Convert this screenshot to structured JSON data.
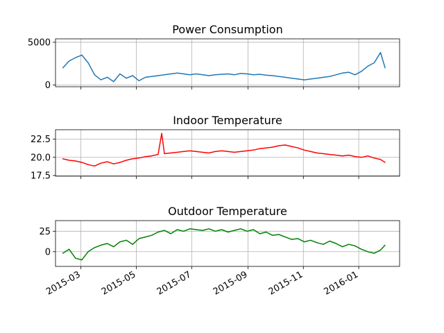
{
  "chart_data": [
    {
      "type": "line",
      "title": "Power Consumption",
      "color": "#1f77b4",
      "xlim": [
        "2015-02-01",
        "2016-02-15"
      ],
      "ylim": [
        -200,
        5400
      ],
      "yticks": [
        0,
        5000
      ],
      "ytick_labels": [
        "0",
        "5000"
      ],
      "grid": true,
      "x_dates": [
        "2015-02-09",
        "2015-02-16",
        "2015-02-23",
        "2015-03-02",
        "2015-03-09",
        "2015-03-16",
        "2015-03-23",
        "2015-03-30",
        "2015-04-06",
        "2015-04-13",
        "2015-04-20",
        "2015-04-27",
        "2015-05-04",
        "2015-05-11",
        "2015-05-18",
        "2015-05-25",
        "2015-06-01",
        "2015-06-08",
        "2015-06-15",
        "2015-06-22",
        "2015-06-29",
        "2015-07-06",
        "2015-07-13",
        "2015-07-20",
        "2015-07-27",
        "2015-08-03",
        "2015-08-10",
        "2015-08-17",
        "2015-08-24",
        "2015-08-31",
        "2015-09-07",
        "2015-09-14",
        "2015-09-21",
        "2015-09-28",
        "2015-10-05",
        "2015-10-12",
        "2015-10-19",
        "2015-10-26",
        "2015-11-02",
        "2015-11-09",
        "2015-11-16",
        "2015-11-23",
        "2015-11-30",
        "2015-12-07",
        "2015-12-14",
        "2015-12-21",
        "2015-12-28",
        "2016-01-04",
        "2016-01-11",
        "2016-01-18",
        "2016-01-25",
        "2016-01-30"
      ],
      "values": [
        2000,
        2800,
        3200,
        3500,
        2600,
        1200,
        600,
        900,
        400,
        1300,
        800,
        1100,
        500,
        900,
        1000,
        1100,
        1200,
        1300,
        1400,
        1300,
        1200,
        1300,
        1200,
        1100,
        1200,
        1250,
        1300,
        1200,
        1350,
        1300,
        1200,
        1250,
        1150,
        1100,
        1000,
        900,
        800,
        700,
        600,
        700,
        800,
        900,
        1000,
        1200,
        1400,
        1500,
        1200,
        1600,
        2200,
        2600,
        3800,
        2000
      ]
    },
    {
      "type": "line",
      "title": "Indoor Temperature",
      "color": "#ff0000",
      "xlim": [
        "2015-02-01",
        "2016-02-15"
      ],
      "ylim": [
        17.4,
        23.8
      ],
      "yticks": [
        17.5,
        20.0,
        22.5
      ],
      "ytick_labels": [
        "17.5",
        "20.0",
        "22.5"
      ],
      "grid": true,
      "x_dates": [
        "2015-02-09",
        "2015-02-16",
        "2015-02-23",
        "2015-03-02",
        "2015-03-09",
        "2015-03-16",
        "2015-03-23",
        "2015-03-30",
        "2015-04-06",
        "2015-04-13",
        "2015-04-20",
        "2015-04-27",
        "2015-05-04",
        "2015-05-11",
        "2015-05-18",
        "2015-05-25",
        "2015-05-29",
        "2015-06-01",
        "2015-06-08",
        "2015-06-15",
        "2015-06-22",
        "2015-06-29",
        "2015-07-06",
        "2015-07-13",
        "2015-07-20",
        "2015-07-27",
        "2015-08-03",
        "2015-08-10",
        "2015-08-17",
        "2015-08-24",
        "2015-08-31",
        "2015-09-07",
        "2015-09-14",
        "2015-09-21",
        "2015-09-28",
        "2015-10-05",
        "2015-10-12",
        "2015-10-19",
        "2015-10-26",
        "2015-11-02",
        "2015-11-09",
        "2015-11-16",
        "2015-11-23",
        "2015-11-30",
        "2015-12-07",
        "2015-12-14",
        "2015-12-21",
        "2015-12-28",
        "2016-01-04",
        "2016-01-11",
        "2016-01-18",
        "2016-01-25",
        "2016-01-30"
      ],
      "values": [
        19.8,
        19.6,
        19.5,
        19.3,
        19.0,
        18.8,
        19.2,
        19.4,
        19.1,
        19.3,
        19.6,
        19.8,
        19.9,
        20.1,
        20.2,
        20.4,
        23.3,
        20.5,
        20.6,
        20.7,
        20.8,
        20.9,
        20.8,
        20.7,
        20.6,
        20.8,
        20.9,
        20.8,
        20.7,
        20.8,
        20.9,
        21.0,
        21.2,
        21.3,
        21.4,
        21.6,
        21.7,
        21.5,
        21.3,
        21.0,
        20.8,
        20.6,
        20.5,
        20.4,
        20.3,
        20.2,
        20.3,
        20.1,
        20.0,
        20.2,
        19.9,
        19.7,
        19.3
      ]
    },
    {
      "type": "line",
      "title": "Outdoor Temperature",
      "color": "#008000",
      "xlim": [
        "2015-02-01",
        "2016-02-15"
      ],
      "ylim": [
        -18,
        38
      ],
      "yticks": [
        0,
        25
      ],
      "ytick_labels": [
        "0",
        "25"
      ],
      "grid": true,
      "x_dates": [
        "2015-02-09",
        "2015-02-16",
        "2015-02-23",
        "2015-03-02",
        "2015-03-09",
        "2015-03-16",
        "2015-03-23",
        "2015-03-30",
        "2015-04-06",
        "2015-04-13",
        "2015-04-20",
        "2015-04-27",
        "2015-05-04",
        "2015-05-11",
        "2015-05-18",
        "2015-05-25",
        "2015-06-01",
        "2015-06-08",
        "2015-06-15",
        "2015-06-22",
        "2015-06-29",
        "2015-07-06",
        "2015-07-13",
        "2015-07-20",
        "2015-07-27",
        "2015-08-03",
        "2015-08-10",
        "2015-08-17",
        "2015-08-24",
        "2015-08-31",
        "2015-09-07",
        "2015-09-14",
        "2015-09-21",
        "2015-09-28",
        "2015-10-05",
        "2015-10-12",
        "2015-10-19",
        "2015-10-26",
        "2015-11-02",
        "2015-11-09",
        "2015-11-16",
        "2015-11-23",
        "2015-11-30",
        "2015-12-07",
        "2015-12-14",
        "2015-12-21",
        "2015-12-28",
        "2016-01-04",
        "2016-01-11",
        "2016-01-18",
        "2016-01-25",
        "2016-01-30"
      ],
      "values": [
        -2,
        3,
        -8,
        -10,
        0,
        5,
        8,
        10,
        6,
        12,
        14,
        9,
        16,
        18,
        20,
        24,
        26,
        22,
        27,
        25,
        28,
        27,
        26,
        28,
        25,
        27,
        24,
        26,
        28,
        25,
        27,
        22,
        24,
        20,
        21,
        18,
        15,
        16,
        12,
        14,
        11,
        9,
        13,
        10,
        6,
        9,
        7,
        3,
        0,
        -2,
        2,
        8
      ]
    }
  ],
  "x_axis": {
    "ticks": [
      "2015-03-01",
      "2015-05-01",
      "2015-07-01",
      "2015-09-01",
      "2015-11-01",
      "2016-01-01"
    ],
    "tick_labels": [
      "2015-03",
      "2015-05",
      "2015-07",
      "2015-09",
      "2015-11",
      "2016-01"
    ]
  }
}
